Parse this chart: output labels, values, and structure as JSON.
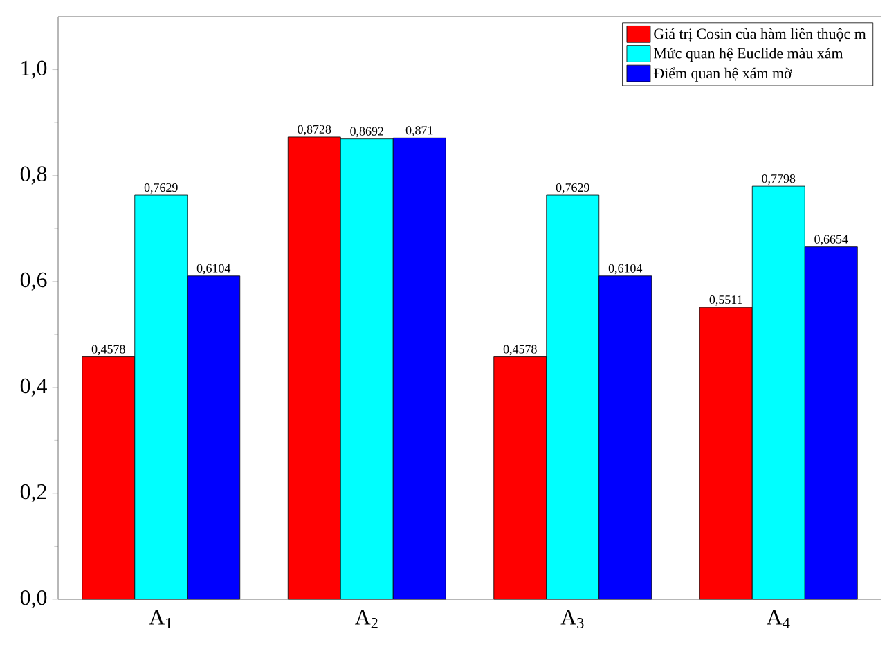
{
  "chart_data": {
    "type": "bar",
    "categories": [
      "A$_{1}$",
      "A$_{2}$",
      "A$_{3}$",
      "A$_{4}$"
    ],
    "series": [
      {
        "name": "Giá trị Cosin của hàm liên thuộc m",
        "color": "#ff0000",
        "values": [
          0.4578,
          0.8728,
          0.4578,
          0.5511
        ],
        "value_labels": [
          "0,4578",
          "0,8728",
          "0,4578",
          "0,5511"
        ]
      },
      {
        "name": "Mức quan hệ Euclide màu xám",
        "color": "#00ffff",
        "values": [
          0.7629,
          0.8692,
          0.7629,
          0.7798
        ],
        "value_labels": [
          "0,7629",
          "0,8692",
          "0,7629",
          "0,7798"
        ]
      },
      {
        "name": "Điểm quan hệ xám mờ",
        "color": "#0000ff",
        "values": [
          0.6104,
          0.871,
          0.6104,
          0.6654
        ],
        "value_labels": [
          "0,6104",
          "0,871",
          "0,6104",
          "0,6654"
        ]
      }
    ],
    "ylim": [
      0,
      1.1
    ],
    "yticks": [
      {
        "value": 0,
        "label": "0,0"
      },
      {
        "value": 0.2,
        "label": "0,2"
      },
      {
        "value": 0.4,
        "label": "0,4"
      },
      {
        "value": 0.6,
        "label": "0,6"
      },
      {
        "value": 0.8,
        "label": "0,8"
      },
      {
        "value": 1.0,
        "label": "1,0"
      }
    ],
    "legend": "top right",
    "grid": false
  }
}
